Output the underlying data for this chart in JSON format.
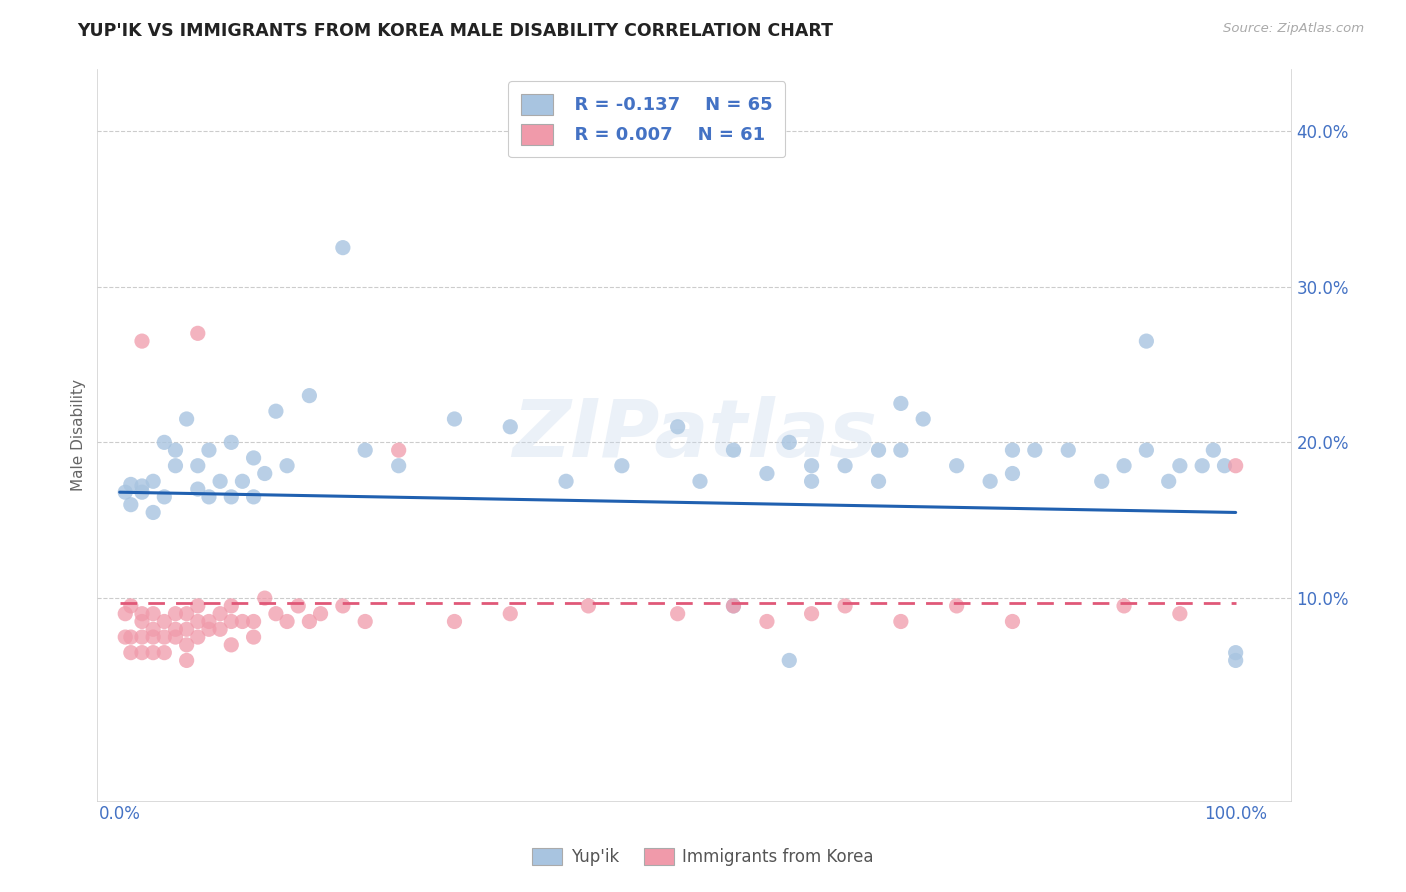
{
  "title": "YUP'IK VS IMMIGRANTS FROM KOREA MALE DISABILITY CORRELATION CHART",
  "source_text": "Source: ZipAtlas.com",
  "ylabel": "Male Disability",
  "xlim": [
    0.0,
    1.0
  ],
  "ylim": [
    0.0,
    0.44
  ],
  "ytick_vals": [
    0.1,
    0.2,
    0.3,
    0.4
  ],
  "ytick_labels": [
    "10.0%",
    "20.0%",
    "30.0%",
    "40.0%"
  ],
  "xtick_vals": [
    0.0,
    1.0
  ],
  "xtick_labels": [
    "0.0%",
    "100.0%"
  ],
  "legend_r1": "R = -0.137",
  "legend_n1": "N = 65",
  "legend_r2": "R = 0.007",
  "legend_n2": "N = 61",
  "color_blue": "#a8c4e0",
  "color_pink": "#f09aaa",
  "line_blue": "#2060b0",
  "line_pink": "#e05878",
  "watermark": "ZIPatlas",
  "blue_line_start": 0.168,
  "blue_line_end": 0.155,
  "pink_line_y": 0.097,
  "blue_x": [
    0.005,
    0.01,
    0.01,
    0.02,
    0.02,
    0.03,
    0.03,
    0.04,
    0.04,
    0.05,
    0.05,
    0.06,
    0.07,
    0.07,
    0.08,
    0.08,
    0.09,
    0.1,
    0.1,
    0.11,
    0.12,
    0.12,
    0.13,
    0.14,
    0.15,
    0.17,
    0.2,
    0.22,
    0.25,
    0.3,
    0.35,
    0.4,
    0.45,
    0.5,
    0.52,
    0.55,
    0.58,
    0.6,
    0.62,
    0.65,
    0.68,
    0.7,
    0.72,
    0.75,
    0.78,
    0.8,
    0.82,
    0.85,
    0.88,
    0.9,
    0.92,
    0.94,
    0.95,
    0.97,
    0.98,
    0.99,
    1.0,
    1.0,
    0.55,
    0.6,
    0.68,
    0.7,
    0.8,
    0.92,
    0.62
  ],
  "blue_y": [
    0.168,
    0.173,
    0.16,
    0.172,
    0.168,
    0.175,
    0.155,
    0.165,
    0.2,
    0.185,
    0.195,
    0.215,
    0.185,
    0.17,
    0.195,
    0.165,
    0.175,
    0.2,
    0.165,
    0.175,
    0.19,
    0.165,
    0.18,
    0.22,
    0.185,
    0.23,
    0.325,
    0.195,
    0.185,
    0.215,
    0.21,
    0.175,
    0.185,
    0.21,
    0.175,
    0.195,
    0.18,
    0.2,
    0.175,
    0.185,
    0.195,
    0.225,
    0.215,
    0.185,
    0.175,
    0.18,
    0.195,
    0.195,
    0.175,
    0.185,
    0.195,
    0.175,
    0.185,
    0.185,
    0.195,
    0.185,
    0.06,
    0.065,
    0.095,
    0.06,
    0.175,
    0.195,
    0.195,
    0.265,
    0.185
  ],
  "pink_x": [
    0.005,
    0.005,
    0.01,
    0.01,
    0.01,
    0.02,
    0.02,
    0.02,
    0.02,
    0.03,
    0.03,
    0.03,
    0.03,
    0.04,
    0.04,
    0.04,
    0.05,
    0.05,
    0.05,
    0.06,
    0.06,
    0.06,
    0.06,
    0.07,
    0.07,
    0.07,
    0.08,
    0.08,
    0.09,
    0.09,
    0.1,
    0.1,
    0.1,
    0.11,
    0.12,
    0.12,
    0.13,
    0.14,
    0.15,
    0.16,
    0.17,
    0.18,
    0.2,
    0.22,
    0.25,
    0.3,
    0.35,
    0.42,
    0.5,
    0.55,
    0.58,
    0.62,
    0.65,
    0.7,
    0.75,
    0.8,
    0.9,
    0.95,
    1.0,
    0.07,
    0.02
  ],
  "pink_y": [
    0.09,
    0.075,
    0.095,
    0.075,
    0.065,
    0.085,
    0.09,
    0.075,
    0.065,
    0.09,
    0.08,
    0.075,
    0.065,
    0.085,
    0.075,
    0.065,
    0.09,
    0.075,
    0.08,
    0.09,
    0.08,
    0.07,
    0.06,
    0.085,
    0.095,
    0.075,
    0.085,
    0.08,
    0.09,
    0.08,
    0.085,
    0.095,
    0.07,
    0.085,
    0.085,
    0.075,
    0.1,
    0.09,
    0.085,
    0.095,
    0.085,
    0.09,
    0.095,
    0.085,
    0.195,
    0.085,
    0.09,
    0.095,
    0.09,
    0.095,
    0.085,
    0.09,
    0.095,
    0.085,
    0.095,
    0.085,
    0.095,
    0.09,
    0.185,
    0.27,
    0.265
  ]
}
